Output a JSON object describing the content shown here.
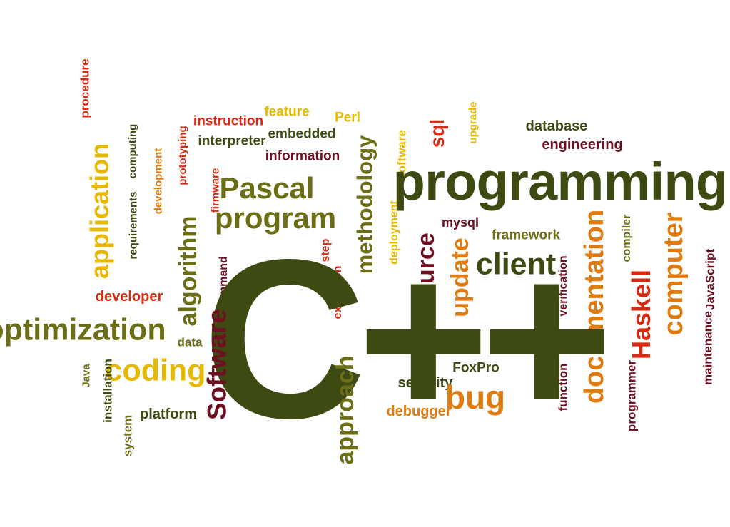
{
  "colors": {
    "dark_green": "#3d4a12",
    "olive": "#6b6e14",
    "yellow": "#e6b800",
    "orange": "#e07b10",
    "red": "#d62a12",
    "maroon": "#6e1022",
    "background": "#ffffff"
  },
  "words": [
    {
      "key": "procedure",
      "text": "procedure",
      "color": "#d62a12"
    },
    {
      "key": "instruction",
      "text": "instruction",
      "color": "#d62a12"
    },
    {
      "key": "feature",
      "text": "feature",
      "color": "#e6b800"
    },
    {
      "key": "perl",
      "text": "Perl",
      "color": "#e6b800"
    },
    {
      "key": "sql",
      "text": "sql",
      "color": "#d62a12"
    },
    {
      "key": "upgrade",
      "text": "upgrade",
      "color": "#e6b800"
    },
    {
      "key": "database",
      "text": "database",
      "color": "#3d4a12"
    },
    {
      "key": "engineering",
      "text": "engineering",
      "color": "#6e1022"
    },
    {
      "key": "computing",
      "text": "computing",
      "color": "#3d4a12"
    },
    {
      "key": "prototyping",
      "text": "prototyping",
      "color": "#d62a12"
    },
    {
      "key": "interpreter",
      "text": "interpreter",
      "color": "#3d4a12"
    },
    {
      "key": "embedded",
      "text": "embedded",
      "color": "#3d4a12"
    },
    {
      "key": "information",
      "text": "information",
      "color": "#6e1022"
    },
    {
      "key": "methodology",
      "text": "methodology",
      "color": "#6b6e14"
    },
    {
      "key": "software_small",
      "text": "software",
      "color": "#e6b800"
    },
    {
      "key": "programming",
      "text": "programming",
      "color": "#3d4a12"
    },
    {
      "key": "application",
      "text": "application",
      "color": "#e6b800"
    },
    {
      "key": "requirements",
      "text": "requirements",
      "color": "#3d4a12"
    },
    {
      "key": "development",
      "text": "development",
      "color": "#e07b10"
    },
    {
      "key": "firmware",
      "text": "firmware",
      "color": "#d62a12"
    },
    {
      "key": "pascal",
      "text": "Pascal",
      "color": "#6b6e14"
    },
    {
      "key": "program",
      "text": "program",
      "color": "#6b6e14"
    },
    {
      "key": "deployment",
      "text": "deployment",
      "color": "#e6b800"
    },
    {
      "key": "mysql",
      "text": "mysql",
      "color": "#6e1022"
    },
    {
      "key": "framework",
      "text": "framework",
      "color": "#6b6e14"
    },
    {
      "key": "compiler",
      "text": "compiler",
      "color": "#6b6e14"
    },
    {
      "key": "algorithm",
      "text": "algorithm",
      "color": "#6b6e14"
    },
    {
      "key": "step",
      "text": "step",
      "color": "#d62a12"
    },
    {
      "key": "source",
      "text": "source",
      "color": "#6e1022"
    },
    {
      "key": "update",
      "text": "update",
      "color": "#e07b10"
    },
    {
      "key": "client",
      "text": "client",
      "color": "#3d4a12"
    },
    {
      "key": "documentation",
      "text": "documentation",
      "color": "#e07b10"
    },
    {
      "key": "computer",
      "text": "computer",
      "color": "#e07b10"
    },
    {
      "key": "javascript",
      "text": "JavaScript",
      "color": "#6e1022"
    },
    {
      "key": "command",
      "text": "command",
      "color": "#6e1022"
    },
    {
      "key": "execution",
      "text": "execution",
      "color": "#d62a12"
    },
    {
      "key": "verification",
      "text": "verification",
      "color": "#6e1022"
    },
    {
      "key": "haskell",
      "text": "Haskell",
      "color": "#d62a12"
    },
    {
      "key": "developer",
      "text": "developer",
      "color": "#d62a12"
    },
    {
      "key": "optimization",
      "text": "optimization",
      "color": "#6b6e14"
    },
    {
      "key": "cpp",
      "text": "C++",
      "color": "#3d4a12"
    },
    {
      "key": "data",
      "text": "data",
      "color": "#6b6e14"
    },
    {
      "key": "software_big",
      "text": "Software",
      "color": "#6e1022"
    },
    {
      "key": "coding",
      "text": "coding",
      "color": "#e6b800"
    },
    {
      "key": "approach",
      "text": "approach",
      "color": "#6b6e14"
    },
    {
      "key": "foxpro",
      "text": "FoxPro",
      "color": "#3d4a12"
    },
    {
      "key": "security",
      "text": "security",
      "color": "#3d4a12"
    },
    {
      "key": "bug",
      "text": "bug",
      "color": "#e07b10"
    },
    {
      "key": "function",
      "text": "function",
      "color": "#6e1022"
    },
    {
      "key": "programmer",
      "text": "programmer",
      "color": "#6e1022"
    },
    {
      "key": "maintenance",
      "text": "maintenance",
      "color": "#6e1022"
    },
    {
      "key": "java",
      "text": "Java",
      "color": "#6b6e14"
    },
    {
      "key": "installation",
      "text": "installation",
      "color": "#3d4a12"
    },
    {
      "key": "system",
      "text": "system",
      "color": "#6b6e14"
    },
    {
      "key": "platform",
      "text": "platform",
      "color": "#3d4a12"
    },
    {
      "key": "debugger",
      "text": "debugger",
      "color": "#e07b10"
    }
  ]
}
